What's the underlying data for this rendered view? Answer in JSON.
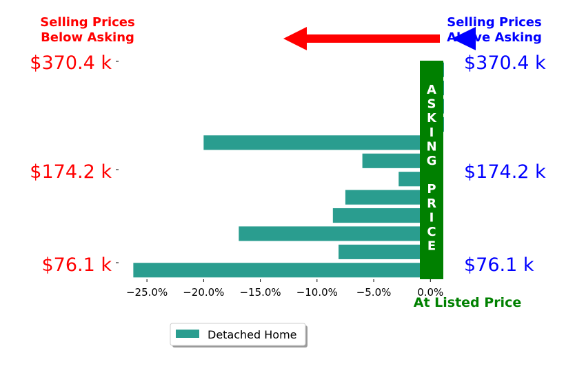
{
  "chart_data": {
    "type": "bar",
    "orientation": "horizontal",
    "series": [
      {
        "name": "Detached Home",
        "values": [
          -26.2,
          -8.1,
          -16.9,
          -8.6,
          -7.5,
          -2.8,
          -6.0,
          -20.0,
          1.2,
          1.2,
          1.2,
          1.2
        ]
      }
    ],
    "xlim": [
      -27.5,
      1.2
    ],
    "xticks": [
      "−25.0%",
      "−20.0%",
      "−15.0%",
      "−10.0%",
      "−5.0%",
      "0.0%"
    ],
    "xtick_values": [
      -25,
      -20,
      -15,
      -10,
      -5,
      0
    ],
    "grid": false,
    "legend_position": "bottom-center"
  },
  "colors": {
    "bar": "#2a9d8f",
    "below": "#ff0000",
    "above": "#0000ff",
    "asking": "#008000"
  },
  "header": {
    "left_line1": "Selling Prices",
    "left_line2": "Below Asking",
    "right_line1": "Selling Prices",
    "right_line2": "Above Asking"
  },
  "price_labels": {
    "top": "$370.4 k",
    "mid": "$174.2 k",
    "bottom": "$76.1 k"
  },
  "asking_letters": [
    "A",
    "S",
    "K",
    "I",
    "N",
    "G",
    "",
    "P",
    "R",
    "I",
    "C",
    "E"
  ],
  "listed_label": "At Listed Price",
  "legend_label": "Detached Home"
}
